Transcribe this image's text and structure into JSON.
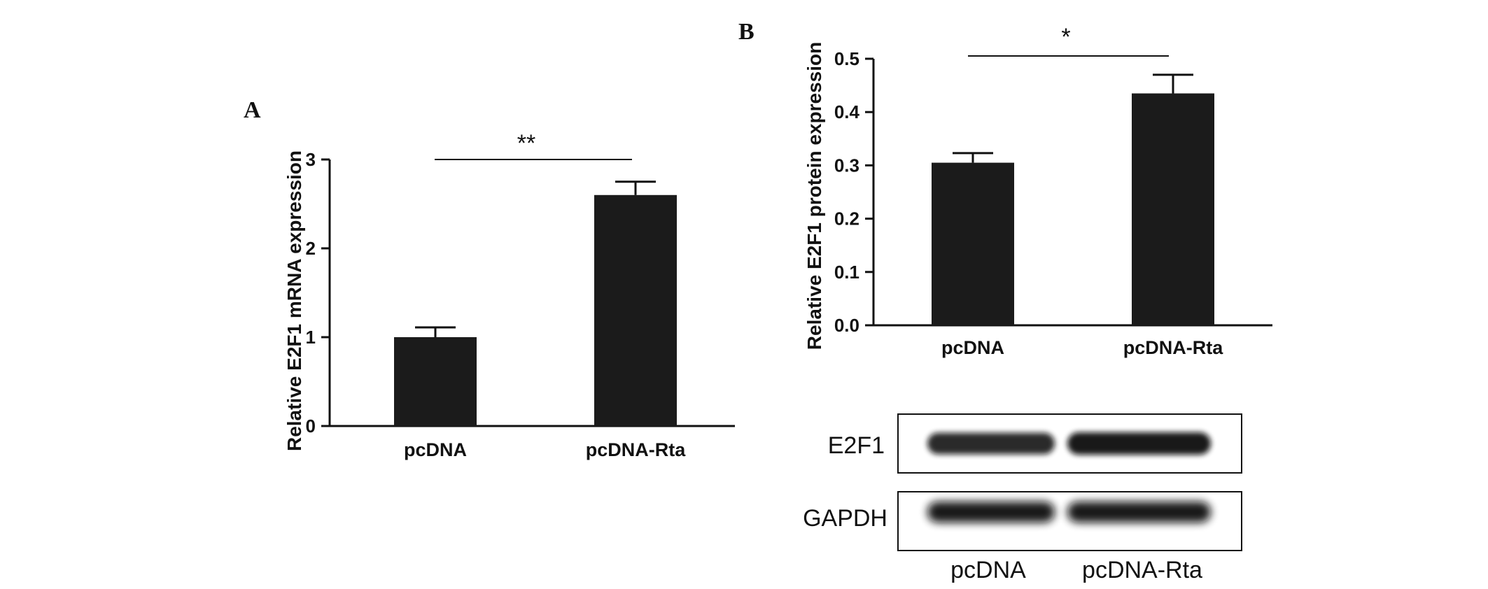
{
  "chart_data": [
    {
      "panel": "A",
      "type": "bar",
      "categories": [
        "pcDNA",
        "pcDNA-Rta"
      ],
      "values": [
        1.0,
        2.6
      ],
      "errors": [
        0.11,
        0.15
      ],
      "ylabel": "Relative E2F1 mRNA expression",
      "ylim": [
        0,
        3
      ],
      "yticks": [
        "0",
        "1",
        "2",
        "3"
      ],
      "significance": "**"
    },
    {
      "panel": "B",
      "type": "bar",
      "categories": [
        "pcDNA",
        "pcDNA-Rta"
      ],
      "values": [
        0.305,
        0.435
      ],
      "errors": [
        0.018,
        0.035
      ],
      "ylabel": "Relative E2F1 protein expression",
      "ylim": [
        0,
        0.5
      ],
      "yticks": [
        "0.0",
        "0.1",
        "0.2",
        "0.3",
        "0.4",
        "0.5"
      ],
      "significance": "*"
    }
  ],
  "blot": {
    "rows": [
      {
        "label": "E2F1",
        "intensities": [
          0.85,
          1.0
        ]
      },
      {
        "label": "GAPDH",
        "intensities": [
          1.0,
          1.0
        ]
      }
    ],
    "lanes": [
      "pcDNA",
      "pcDNA-Rta"
    ]
  }
}
